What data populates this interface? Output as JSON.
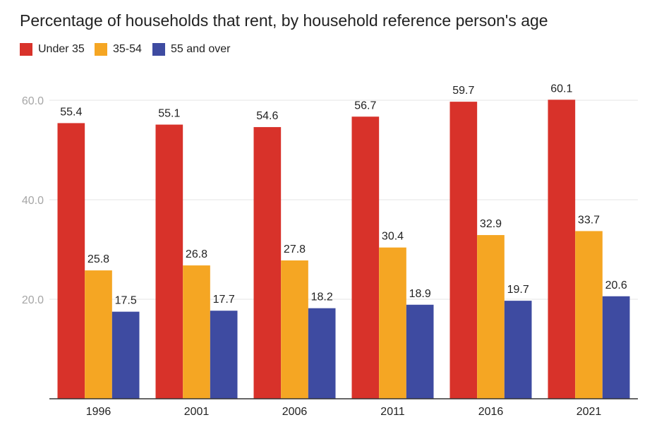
{
  "chart_data": {
    "type": "bar",
    "title": "Percentage of households that rent, by household reference person's age",
    "xlabel": "",
    "ylabel": "",
    "categories": [
      "1996",
      "2001",
      "2006",
      "2011",
      "2016",
      "2021"
    ],
    "series": [
      {
        "name": "Under 35",
        "color": "#d8322a",
        "values": [
          55.4,
          55.1,
          54.6,
          56.7,
          59.7,
          60.1
        ]
      },
      {
        "name": "35-54",
        "color": "#f5a623",
        "values": [
          25.8,
          26.8,
          27.8,
          30.4,
          32.9,
          33.7
        ]
      },
      {
        "name": "55 and over",
        "color": "#3e4ba1",
        "values": [
          17.5,
          17.7,
          18.2,
          18.9,
          19.7,
          20.6
        ]
      }
    ],
    "y_ticks": [
      {
        "value": 20,
        "label": "20.0"
      },
      {
        "value": 40,
        "label": "40.0"
      },
      {
        "value": 60,
        "label": "60.0"
      }
    ],
    "ylim": [
      0,
      60
    ],
    "grid": true,
    "legend": "top-left"
  }
}
